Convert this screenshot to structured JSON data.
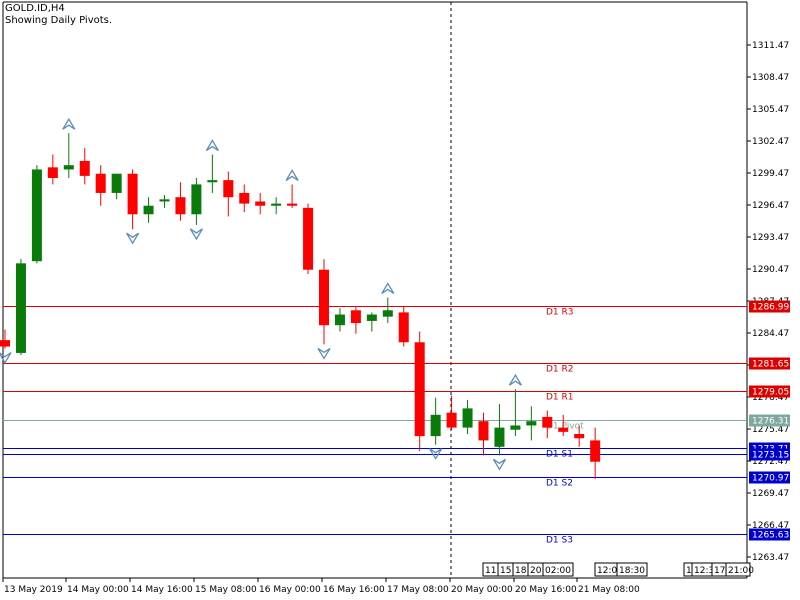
{
  "window": {
    "symbol_title": "GOLD.ID,H4",
    "indicator_note": "Showing Daily Pivots."
  },
  "colors": {
    "bull": "#0a7a0a",
    "bear": "#ff0000",
    "pivot_main": "#7fa8a0",
    "resistance": "#dd0000",
    "support": "#0000cc",
    "arrow": "#5b8db8",
    "grid_text": "#000000"
  },
  "chart_data": {
    "type": "candlestick",
    "y_range": [
      1261.5,
      1315.5
    ],
    "y_ticks": [
      "1311.47",
      "1308.47",
      "1305.47",
      "1302.47",
      "1299.47",
      "1296.47",
      "1293.47",
      "1290.47",
      "1287.47",
      "1284.47",
      "1281.47",
      "1278.47",
      "1275.47",
      "1272.47",
      "1269.47",
      "1266.47",
      "1263.47"
    ],
    "x_labels": [
      "13 May 2019",
      "14 May 00:00",
      "14 May 16:00",
      "15 May 08:00",
      "16 May 00:00",
      "16 May 16:00",
      "17 May 08:00",
      "20 May 00:00",
      "20 May 16:00",
      "21 May 08:00"
    ],
    "candles": [
      {
        "o": 1283.8,
        "h": 1284.8,
        "l": 1283.0,
        "c": 1283.2
      },
      {
        "o": 1282.6,
        "h": 1291.4,
        "l": 1282.4,
        "c": 1291.0
      },
      {
        "o": 1291.2,
        "h": 1300.2,
        "l": 1291.0,
        "c": 1299.8
      },
      {
        "o": 1300.0,
        "h": 1301.2,
        "l": 1298.4,
        "c": 1299.0
      },
      {
        "o": 1299.8,
        "h": 1303.2,
        "l": 1299.0,
        "c": 1300.2
      },
      {
        "o": 1300.6,
        "h": 1301.8,
        "l": 1298.4,
        "c": 1299.2
      },
      {
        "o": 1299.4,
        "h": 1300.2,
        "l": 1296.4,
        "c": 1297.6
      },
      {
        "o": 1297.6,
        "h": 1299.4,
        "l": 1297.0,
        "c": 1299.4
      },
      {
        "o": 1299.4,
        "h": 1299.8,
        "l": 1294.2,
        "c": 1295.6
      },
      {
        "o": 1295.6,
        "h": 1297.2,
        "l": 1294.8,
        "c": 1296.4
      },
      {
        "o": 1296.8,
        "h": 1297.4,
        "l": 1296.2,
        "c": 1297.0
      },
      {
        "o": 1297.2,
        "h": 1298.6,
        "l": 1295.0,
        "c": 1295.6
      },
      {
        "o": 1295.6,
        "h": 1299.0,
        "l": 1294.6,
        "c": 1298.4
      },
      {
        "o": 1298.6,
        "h": 1301.2,
        "l": 1297.6,
        "c": 1298.8
      },
      {
        "o": 1298.8,
        "h": 1299.6,
        "l": 1295.4,
        "c": 1297.2
      },
      {
        "o": 1297.6,
        "h": 1298.4,
        "l": 1295.8,
        "c": 1296.6
      },
      {
        "o": 1296.8,
        "h": 1297.6,
        "l": 1295.6,
        "c": 1296.4
      },
      {
        "o": 1296.4,
        "h": 1297.2,
        "l": 1295.6,
        "c": 1296.6
      },
      {
        "o": 1296.6,
        "h": 1298.4,
        "l": 1296.2,
        "c": 1296.4
      },
      {
        "o": 1296.2,
        "h": 1296.6,
        "l": 1290.0,
        "c": 1290.4
      },
      {
        "o": 1290.4,
        "h": 1291.4,
        "l": 1283.4,
        "c": 1285.2
      },
      {
        "o": 1285.2,
        "h": 1286.8,
        "l": 1284.6,
        "c": 1286.2
      },
      {
        "o": 1286.6,
        "h": 1287.0,
        "l": 1284.4,
        "c": 1285.4
      },
      {
        "o": 1285.6,
        "h": 1286.4,
        "l": 1284.6,
        "c": 1286.2
      },
      {
        "o": 1286.0,
        "h": 1287.8,
        "l": 1285.4,
        "c": 1286.6
      },
      {
        "o": 1286.4,
        "h": 1287.0,
        "l": 1283.2,
        "c": 1283.6
      },
      {
        "o": 1283.6,
        "h": 1284.6,
        "l": 1273.4,
        "c": 1274.8
      },
      {
        "o": 1274.8,
        "h": 1278.4,
        "l": 1274.0,
        "c": 1276.8
      },
      {
        "o": 1277.0,
        "h": 1278.6,
        "l": 1275.4,
        "c": 1275.6
      },
      {
        "o": 1275.6,
        "h": 1278.2,
        "l": 1275.0,
        "c": 1277.4
      },
      {
        "o": 1276.2,
        "h": 1277.0,
        "l": 1273.0,
        "c": 1274.4
      },
      {
        "o": 1273.8,
        "h": 1277.8,
        "l": 1273.0,
        "c": 1275.6
      },
      {
        "o": 1275.4,
        "h": 1279.2,
        "l": 1274.8,
        "c": 1275.8
      },
      {
        "o": 1275.8,
        "h": 1277.6,
        "l": 1274.4,
        "c": 1276.2
      },
      {
        "o": 1276.6,
        "h": 1277.2,
        "l": 1274.6,
        "c": 1275.6
      },
      {
        "o": 1275.6,
        "h": 1276.8,
        "l": 1274.8,
        "c": 1275.2
      },
      {
        "o": 1275.0,
        "h": 1275.8,
        "l": 1273.8,
        "c": 1274.6
      },
      {
        "o": 1274.4,
        "h": 1275.6,
        "l": 1270.8,
        "c": 1272.4
      }
    ],
    "fractals_up": [
      4,
      13,
      18,
      24,
      32
    ],
    "fractals_down": [
      0,
      8,
      12,
      20,
      27,
      31
    ],
    "pivot_lines": [
      {
        "label": "D1 R3",
        "value": 1286.99,
        "tag": "1286.99",
        "kind": "resistance"
      },
      {
        "label": "D1 R2",
        "value": 1281.65,
        "tag": "1281.65",
        "kind": "resistance"
      },
      {
        "label": "D1 R1",
        "value": 1279.05,
        "tag": "1279.05",
        "kind": "resistance"
      },
      {
        "label": "D1 Pivot",
        "value": 1276.31,
        "tag": "1276.31",
        "kind": "pivot"
      },
      {
        "label": "D1 S1",
        "value": 1273.71,
        "tag": "1273.71",
        "kind": "support"
      },
      {
        "label": "",
        "value": 1273.15,
        "tag": "1273.15",
        "kind": "support"
      },
      {
        "label": "D1 S2",
        "value": 1270.97,
        "tag": "1270.97",
        "kind": "support"
      },
      {
        "label": "D1 S3",
        "value": 1265.63,
        "tag": "1265.63",
        "kind": "support"
      }
    ],
    "time_boxes_left": [
      "11:",
      "15:",
      "18:",
      "20:",
      "02:00"
    ],
    "time_boxes_mid": [
      "12:0",
      "18:30"
    ],
    "time_boxes_right": [
      "1",
      "12:3",
      "17",
      "21:00"
    ],
    "grid": false
  }
}
